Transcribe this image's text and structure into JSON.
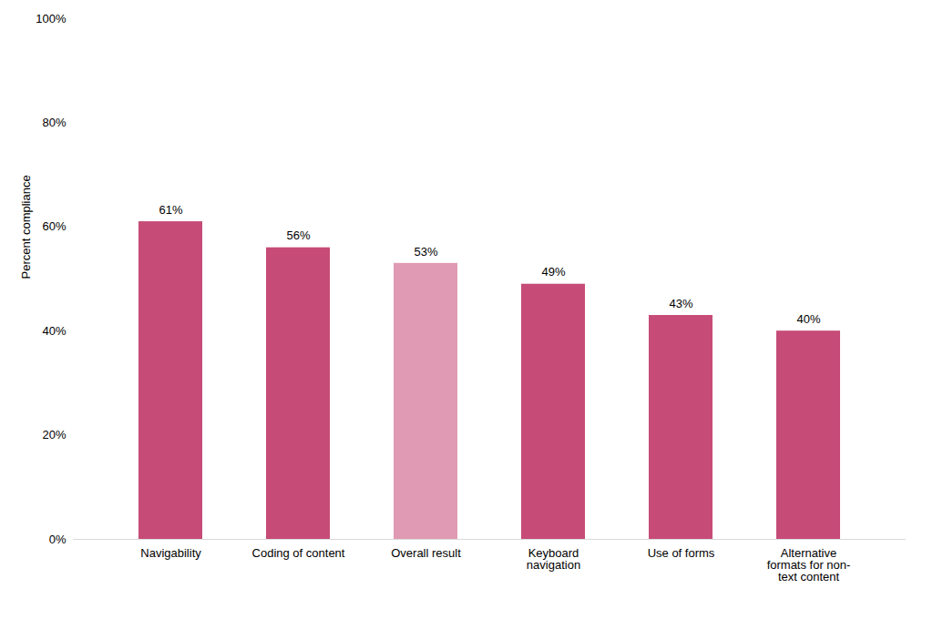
{
  "chart_data": {
    "type": "bar",
    "y_label": "Percent compliance",
    "categories": [
      "Navigability",
      "Coding of content",
      "Overall result",
      "Keyboard navigation",
      "Use of forms",
      "Alternative formats for non-text content"
    ],
    "values": [
      61,
      56,
      53,
      49,
      43,
      40
    ],
    "value_labels": [
      "61%",
      "56%",
      "53%",
      "49%",
      "43%",
      "40%"
    ],
    "colors": [
      "#c64b77",
      "#c64b77",
      "#e09ab3",
      "#c64b77",
      "#c64b77",
      "#c64b77"
    ],
    "ylim": [
      0,
      100
    ],
    "yticks": [
      {
        "value": 0,
        "label": "0%"
      },
      {
        "value": 20,
        "label": "20%"
      },
      {
        "value": 40,
        "label": "40%"
      },
      {
        "value": 60,
        "label": "60%"
      },
      {
        "value": 80,
        "label": "80%"
      },
      {
        "value": 100,
        "label": "100%"
      }
    ],
    "grid": false,
    "data_labels": true
  }
}
